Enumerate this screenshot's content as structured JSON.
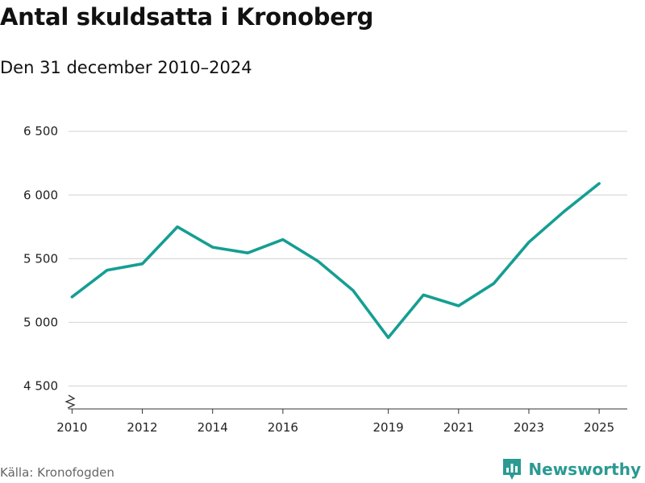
{
  "header": {
    "title": "Antal skuldsatta i Kronoberg",
    "subtitle": "Den 31 december 2010–2024"
  },
  "footer": {
    "source": "Källa: Kronofogden",
    "brand": "Newsworthy"
  },
  "colors": {
    "line": "#159e93",
    "grid": "#d9d9d9",
    "axis": "#333333",
    "brand": "#2a9a92"
  },
  "chart_data": {
    "type": "line",
    "title": "Antal skuldsatta i Kronoberg",
    "subtitle": "Den 31 december 2010–2024",
    "xlabel": "",
    "ylabel": "",
    "x": [
      2010,
      2011,
      2012,
      2013,
      2014,
      2015,
      2016,
      2017,
      2018,
      2019,
      2020,
      2021,
      2022,
      2023,
      2024,
      2025
    ],
    "series": [
      {
        "name": "Antal skuldsatta",
        "values": [
          5200,
          5410,
          5460,
          5750,
          5590,
          5545,
          5650,
          5480,
          5250,
          4880,
          5215,
          5130,
          5305,
          5630,
          5870,
          6090
        ]
      }
    ],
    "xlim": [
      2009.9,
      2025.8
    ],
    "ylim": [
      4320,
      6520
    ],
    "yticks": [
      4500,
      5000,
      5500,
      6000,
      6500
    ],
    "ytick_labels": [
      "4 500",
      "5 000",
      "5 500",
      "6 000",
      "6 500"
    ],
    "xticks": [
      2010,
      2012,
      2014,
      2016,
      2019,
      2021,
      2023,
      2025
    ],
    "xtick_labels": [
      "2010",
      "2012",
      "2014",
      "2016",
      "2019",
      "2021",
      "2023",
      "2025"
    ],
    "grid": true,
    "axis_break": true
  }
}
